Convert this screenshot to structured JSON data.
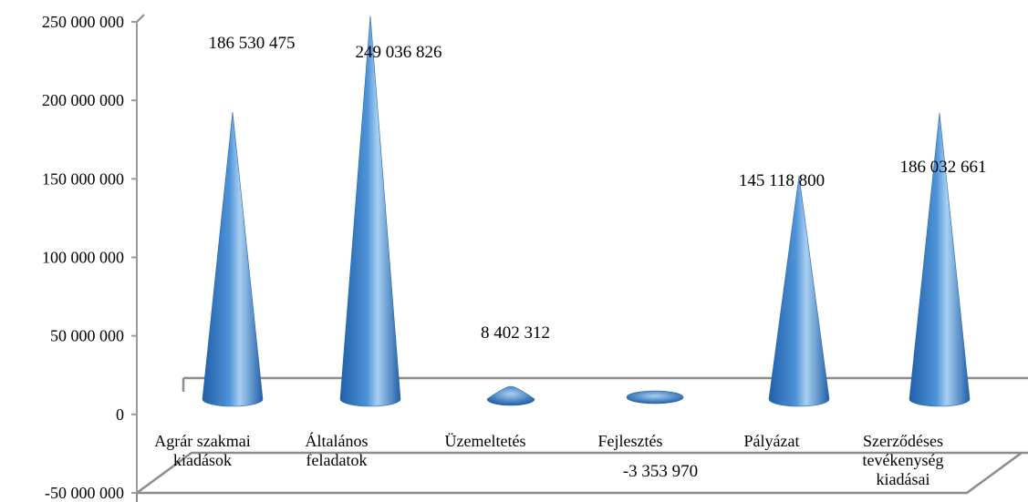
{
  "chart_data": {
    "type": "bar",
    "bar_shape": "cone",
    "categories": [
      [
        "Agrár szakmai",
        "kiadások"
      ],
      [
        "Általános",
        "feladatok"
      ],
      [
        "Üzemeltetés"
      ],
      [
        "Fejlesztés"
      ],
      [
        "Pályázat"
      ],
      [
        "Szerződéses",
        "tevékenység",
        "kiadásai"
      ]
    ],
    "values": [
      186530475,
      249036826,
      8402312,
      -3353970,
      145118800,
      186032661
    ],
    "data_labels": [
      "186 530 475",
      "249 036 826",
      "8 402 312",
      "-3 353 970",
      "145 118 800",
      "186 032 661"
    ],
    "yticks": [
      -50000000,
      0,
      50000000,
      100000000,
      150000000,
      200000000,
      250000000
    ],
    "ytick_labels": [
      "-50 000 000",
      "0",
      "50 000 000",
      "100 000 000",
      "150 000 000",
      "200 000 000",
      "250 000 000"
    ],
    "ylim": [
      -50000000,
      250000000
    ],
    "title": "",
    "xlabel": "",
    "ylabel": "",
    "grid": false,
    "legend": "none",
    "colors": {
      "cone_dark": "#1f5fa8",
      "cone_mid": "#4f93d8",
      "cone_light": "#a9d0f2",
      "wall": "#8c8c8c",
      "axis": "#9a9a9a"
    }
  }
}
